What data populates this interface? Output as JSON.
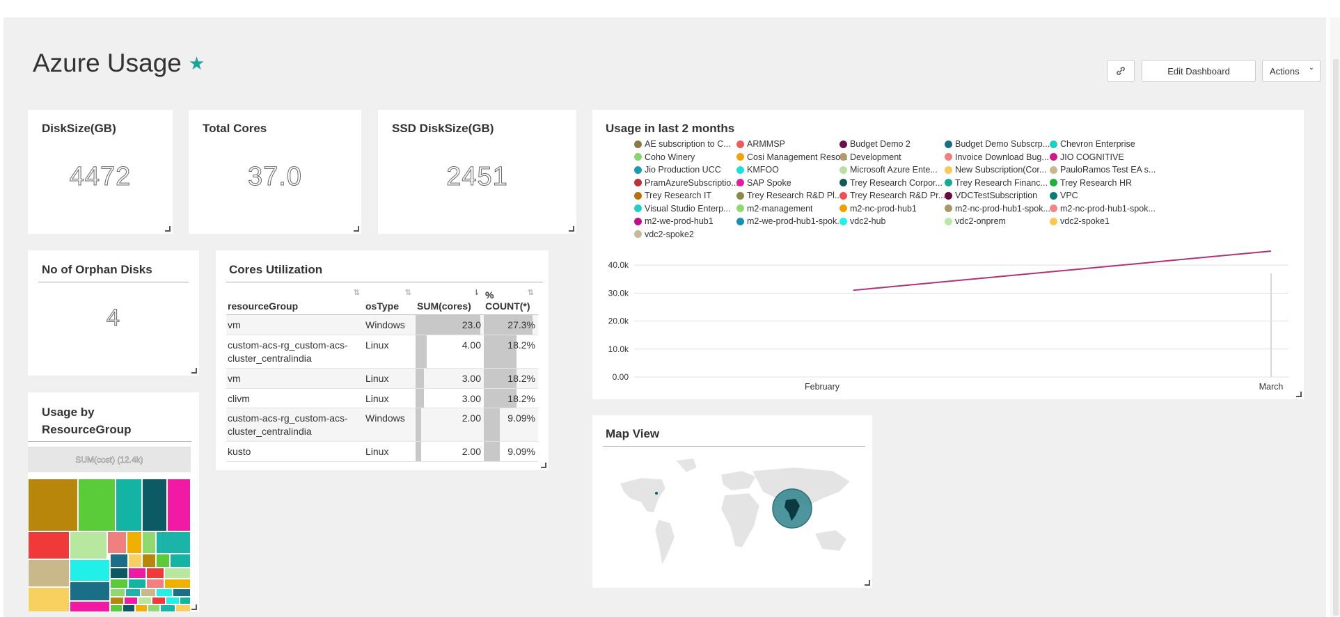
{
  "page": {
    "title": "Azure Usage"
  },
  "toolbar": {
    "link_icon": "link-icon",
    "edit_label": "Edit Dashboard",
    "actions_label": "Actions"
  },
  "cards": {
    "disk_size": {
      "title": "DiskSize(GB)",
      "value": "4472"
    },
    "total_cores": {
      "title": "Total Cores",
      "value": "37.0"
    },
    "ssd_disk_size": {
      "title": "SSD DiskSize(GB)",
      "value": "2451"
    },
    "orphan_disks": {
      "title": "No of Orphan Disks",
      "value": "4"
    },
    "usage_by_rg": {
      "title": "Usage by ResourceGroup",
      "header": "SUM(cost) (12.4k)"
    },
    "map_view": {
      "title": "Map View"
    },
    "usage_chart": {
      "title": "Usage in last 2 months"
    }
  },
  "cores_table": {
    "title": "Cores Utilization",
    "columns": [
      "resourceGroup",
      "osType",
      "SUM(cores)",
      "% COUNT(*)"
    ],
    "rows": [
      {
        "resourceGroup": "vm",
        "osType": "Windows",
        "cores": "23.0",
        "count": "27.3%",
        "cores_frac": 1.0,
        "count_frac": 1.0
      },
      {
        "resourceGroup": "custom-acs-rg_custom-acs-cluster_centralindia",
        "osType": "Linux",
        "cores": "4.00",
        "count": "18.2%",
        "cores_frac": 0.17,
        "count_frac": 0.67
      },
      {
        "resourceGroup": "vm",
        "osType": "Linux",
        "cores": "3.00",
        "count": "18.2%",
        "cores_frac": 0.13,
        "count_frac": 0.67
      },
      {
        "resourceGroup": "clivm",
        "osType": "Linux",
        "cores": "3.00",
        "count": "18.2%",
        "cores_frac": 0.13,
        "count_frac": 0.67
      },
      {
        "resourceGroup": "custom-acs-rg_custom-acs-cluster_centralindia",
        "osType": "Windows",
        "cores": "2.00",
        "count": "9.09%",
        "cores_frac": 0.09,
        "count_frac": 0.33
      },
      {
        "resourceGroup": "kusto",
        "osType": "Linux",
        "cores": "2.00",
        "count": "9.09%",
        "cores_frac": 0.09,
        "count_frac": 0.33
      }
    ]
  },
  "legend": [
    {
      "name": "AE subscription to C...",
      "color": "#8c7a45"
    },
    {
      "name": "ARMMSP",
      "color": "#f05a5a"
    },
    {
      "name": "Budget Demo 2",
      "color": "#6b0f4a"
    },
    {
      "name": "Budget Demo Subscrp...",
      "color": "#1a6e86"
    },
    {
      "name": "Chevron Enterprise",
      "color": "#1ecfc5"
    },
    {
      "name": "Coho Winery",
      "color": "#8bd36f"
    },
    {
      "name": "Cosi Management Reso...",
      "color": "#f0a30a"
    },
    {
      "name": "Development",
      "color": "#b49a6a"
    },
    {
      "name": "Invoice Download Bug...",
      "color": "#f08080"
    },
    {
      "name": "JIO COGNITIVE",
      "color": "#cf1a8a"
    },
    {
      "name": "Jio Production UCC",
      "color": "#1a9ab4"
    },
    {
      "name": "KMFOO",
      "color": "#1edfe0"
    },
    {
      "name": "Microsoft Azure Ente...",
      "color": "#b8e0a0"
    },
    {
      "name": "New Subscription(Cor...",
      "color": "#f8c85a"
    },
    {
      "name": "PauloRamos Test EA s...",
      "color": "#c8b88a"
    },
    {
      "name": "PramAzureSubscriptio...",
      "color": "#c0303a"
    },
    {
      "name": "SAP Spoke",
      "color": "#e020a0"
    },
    {
      "name": "Trey Research Corpor...",
      "color": "#0f5a5a"
    },
    {
      "name": "Trey Research Financ...",
      "color": "#18a898"
    },
    {
      "name": "Trey Research HR",
      "color": "#20b040"
    },
    {
      "name": "Trey Research IT",
      "color": "#b8700a"
    },
    {
      "name": "Trey Research R&D Pl...",
      "color": "#8a8a4a"
    },
    {
      "name": "Trey Research R&D Pr...",
      "color": "#f05050"
    },
    {
      "name": "VDCTestSubscription",
      "color": "#6a0a3a"
    },
    {
      "name": "VPC",
      "color": "#0a7a7a"
    },
    {
      "name": "Visual Studio Enterp...",
      "color": "#20d0c8"
    },
    {
      "name": "m2-management",
      "color": "#90d870"
    },
    {
      "name": "m2-nc-prod-hub1",
      "color": "#f0a000"
    },
    {
      "name": "m2-nc-prod-hub1-spok...",
      "color": "#a89868"
    },
    {
      "name": "m2-nc-prod-hub1-spok...",
      "color": "#f08888"
    },
    {
      "name": "m2-we-prod-hub1",
      "color": "#c0108a"
    },
    {
      "name": "m2-we-prod-hub1-spok...",
      "color": "#1a90b0"
    },
    {
      "name": "vdc2-hub",
      "color": "#20f0e8"
    },
    {
      "name": "vdc2-onprem",
      "color": "#b8e8a8"
    },
    {
      "name": "vdc2-spoke1",
      "color": "#f8c850"
    },
    {
      "name": "vdc2-spoke2",
      "color": "#c8b898"
    }
  ],
  "chart_data": {
    "type": "line",
    "x_labels": [
      "February",
      "March"
    ],
    "y_ticks": [
      "0.00",
      "10.0k",
      "20.0k",
      "30.0k",
      "40.0k"
    ],
    "ylim": [
      0,
      45000
    ],
    "series": [
      {
        "color": "#b0307a",
        "points": [
          [
            0.36,
            31000
          ],
          [
            1.0,
            45000
          ]
        ]
      }
    ]
  },
  "treemap": {
    "colors": [
      "#b8860b",
      "#5acc3a",
      "#14b4a4",
      "#0b5a64",
      "#f01aa4",
      "#f03a3a",
      "#b8e8a0",
      "#f08080",
      "#f0b000",
      "#90d870",
      "#1ab4a8",
      "#c8b88a",
      "#20f0e8",
      "#1a6e86",
      "#f8d060"
    ]
  }
}
